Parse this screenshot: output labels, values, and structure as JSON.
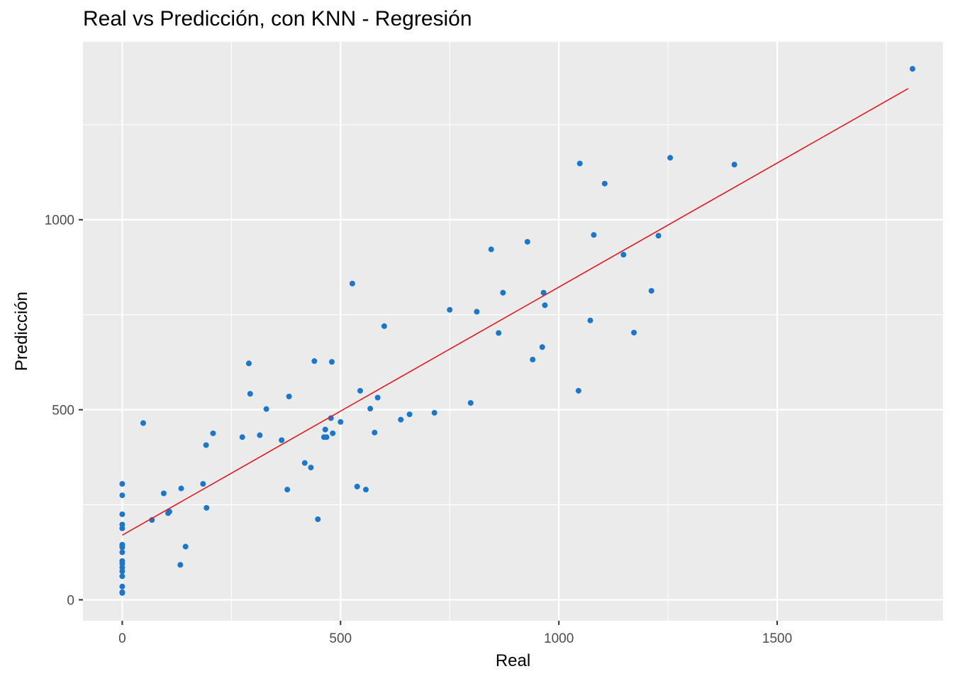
{
  "chart_data": {
    "type": "scatter",
    "title": "Real vs Predicción, con KNN - Regresión",
    "xlabel": "Real",
    "ylabel": "Predicción",
    "xlim": [
      -90,
      1880
    ],
    "ylim": [
      -55,
      1468
    ],
    "xticks": [
      0,
      500,
      1000,
      1500
    ],
    "yticks": [
      0,
      500,
      1000
    ],
    "grid": true,
    "point_color": "#1a78cc",
    "line_color": "#e31a1c",
    "panel_color": "#ebebeb",
    "trend_line": {
      "x": [
        0,
        1800
      ],
      "y": [
        170,
        1345
      ]
    },
    "points": {
      "x": [
        0,
        0,
        0,
        0,
        0,
        0,
        0,
        0,
        0,
        0,
        0,
        0,
        0,
        0,
        0,
        0,
        0,
        48,
        68,
        95,
        105,
        108,
        133,
        135,
        145,
        185,
        192,
        193,
        208,
        275,
        290,
        293,
        315,
        330,
        365,
        378,
        382,
        418,
        432,
        440,
        448,
        462,
        465,
        468,
        478,
        480,
        482,
        500,
        527,
        538,
        545,
        558,
        568,
        578,
        585,
        600,
        638,
        658,
        715,
        750,
        798,
        812,
        845,
        862,
        872,
        928,
        940,
        962,
        965,
        968,
        1045,
        1048,
        1072,
        1080,
        1105,
        1148,
        1172,
        1212,
        1228,
        1255,
        1402,
        1810
      ],
      "y": [
        305,
        275,
        225,
        198,
        188,
        145,
        138,
        125,
        102,
        95,
        85,
        75,
        62,
        35,
        20,
        18,
        140,
        465,
        210,
        280,
        228,
        232,
        92,
        293,
        140,
        305,
        407,
        242,
        438,
        428,
        622,
        542,
        433,
        502,
        420,
        290,
        535,
        360,
        348,
        628,
        212,
        428,
        448,
        428,
        478,
        626,
        438,
        468,
        832,
        298,
        550,
        290,
        503,
        440,
        532,
        720,
        474,
        488,
        492,
        763,
        518,
        758,
        922,
        702,
        808,
        942,
        632,
        665,
        808,
        775,
        550,
        1148,
        735,
        960,
        1095,
        908,
        703,
        813,
        958,
        1163,
        1145,
        1397
      ]
    }
  }
}
